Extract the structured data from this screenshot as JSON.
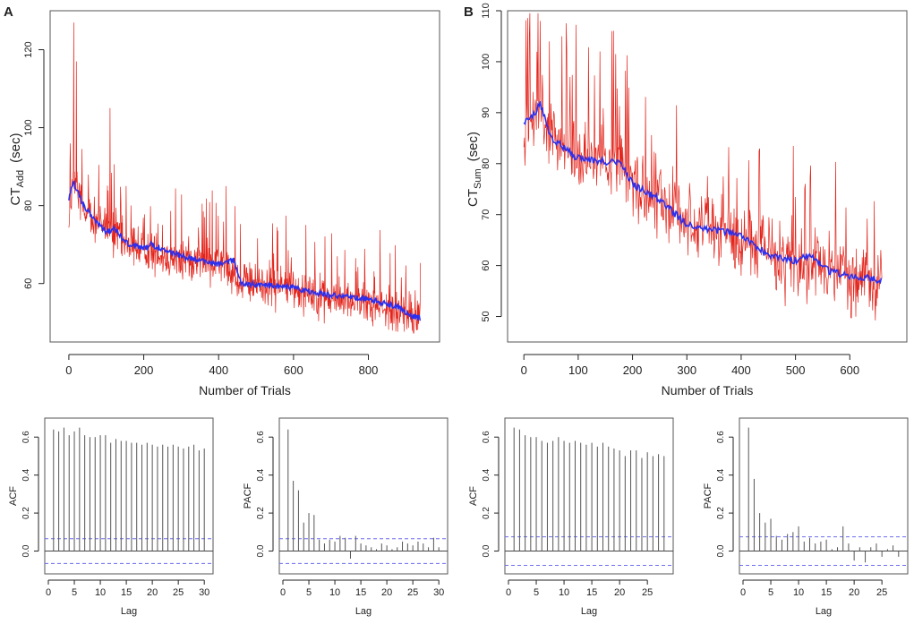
{
  "panels": {
    "a": "A",
    "b": "B"
  },
  "colors": {
    "raw": "#e3241b",
    "smooth": "#2a2ff0",
    "bar": "#555555",
    "ci": "#6f6ff0",
    "zero": "#444444",
    "frame": "#555555"
  },
  "chart_data": [
    {
      "id": "A-main",
      "type": "line",
      "xlabel": "Number of Trials",
      "ylabel": "CT",
      "ylabel_sub": "Add",
      "ylabel_unit": "(sec)",
      "xlim": [
        -50,
        990
      ],
      "ylim": [
        45,
        130
      ],
      "xticks": [
        0,
        200,
        400,
        600,
        800
      ],
      "yticks": [
        60,
        80,
        100,
        120
      ],
      "n": 940,
      "series": [
        {
          "name": "raw",
          "trend": [
            [
              0,
              76
            ],
            [
              10,
              86
            ],
            [
              50,
              78
            ],
            [
              100,
              74
            ],
            [
              150,
              70
            ],
            [
              200,
              69
            ],
            [
              300,
              66
            ],
            [
              420,
              65
            ],
            [
              460,
              60
            ],
            [
              600,
              59
            ],
            [
              700,
              56
            ],
            [
              800,
              55
            ],
            [
              900,
              52
            ],
            [
              940,
              51
            ]
          ],
          "noise": 6,
          "spikes": [
            [
              13,
              127
            ],
            [
              20,
              117
            ],
            [
              110,
              105
            ],
            [
              420,
              85
            ]
          ]
        },
        {
          "name": "smoothed",
          "values": [
            [
              0,
              82
            ],
            [
              12,
              86
            ],
            [
              40,
              80
            ],
            [
              100,
              73
            ],
            [
              120,
              74
            ],
            [
              160,
              70
            ],
            [
              200,
              69
            ],
            [
              220,
              70
            ],
            [
              300,
              67
            ],
            [
              400,
              65
            ],
            [
              440,
              66
            ],
            [
              460,
              60
            ],
            [
              600,
              59
            ],
            [
              640,
              58
            ],
            [
              700,
              57
            ],
            [
              800,
              56
            ],
            [
              880,
              54
            ],
            [
              910,
              52
            ],
            [
              940,
              51
            ]
          ]
        }
      ]
    },
    {
      "id": "B-main",
      "type": "line",
      "xlabel": "Number of Trials",
      "ylabel": "CT",
      "ylabel_sub": "Sum",
      "ylabel_unit": "(sec)",
      "xlim": [
        -30,
        705
      ],
      "ylim": [
        45,
        110
      ],
      "xticks": [
        0,
        100,
        200,
        300,
        400,
        500,
        600
      ],
      "yticks": [
        50,
        60,
        70,
        80,
        90,
        100,
        110
      ],
      "n": 660,
      "series": [
        {
          "name": "raw",
          "trend": [
            [
              0,
              85
            ],
            [
              30,
              90
            ],
            [
              60,
              84
            ],
            [
              100,
              81
            ],
            [
              180,
              80
            ],
            [
              200,
              76
            ],
            [
              300,
              69
            ],
            [
              400,
              65
            ],
            [
              500,
              61
            ],
            [
              600,
              58
            ],
            [
              660,
              57
            ]
          ],
          "noise": 8,
          "spikes": [
            [
              10,
              105
            ],
            [
              30,
              108
            ],
            [
              70,
              105
            ],
            [
              140,
              102
            ]
          ]
        },
        {
          "name": "smoothed",
          "values": [
            [
              0,
              88
            ],
            [
              15,
              89
            ],
            [
              30,
              92
            ],
            [
              50,
              85
            ],
            [
              100,
              81
            ],
            [
              180,
              80
            ],
            [
              200,
              76
            ],
            [
              250,
              73
            ],
            [
              300,
              68
            ],
            [
              400,
              66
            ],
            [
              450,
              62
            ],
            [
              500,
              61
            ],
            [
              530,
              62
            ],
            [
              560,
              59
            ],
            [
              600,
              58
            ],
            [
              660,
              57
            ]
          ]
        }
      ]
    },
    {
      "id": "A-acf",
      "type": "bar",
      "ylabel": "ACF",
      "xlabel": "Lag",
      "xlim": [
        0,
        31
      ],
      "ylim": [
        -0.12,
        0.7
      ],
      "xticks": [
        0,
        5,
        10,
        15,
        20,
        25,
        30
      ],
      "yticks": [
        0.0,
        0.2,
        0.4,
        0.6
      ],
      "ci": 0.065,
      "values": [
        0.64,
        0.63,
        0.65,
        0.61,
        0.63,
        0.65,
        0.61,
        0.6,
        0.6,
        0.61,
        0.61,
        0.57,
        0.59,
        0.58,
        0.58,
        0.57,
        0.57,
        0.56,
        0.57,
        0.56,
        0.55,
        0.56,
        0.55,
        0.56,
        0.55,
        0.54,
        0.55,
        0.56,
        0.53,
        0.54
      ]
    },
    {
      "id": "A-pacf",
      "type": "bar",
      "ylabel": "PACF",
      "xlabel": "Lag",
      "xlim": [
        0,
        31
      ],
      "ylim": [
        -0.12,
        0.7
      ],
      "xticks": [
        0,
        5,
        10,
        15,
        20,
        25,
        30
      ],
      "yticks": [
        0.0,
        0.2,
        0.4,
        0.6
      ],
      "ci": 0.065,
      "values": [
        0.64,
        0.37,
        0.32,
        0.15,
        0.2,
        0.19,
        0.06,
        0.04,
        0.06,
        0.05,
        0.08,
        0.07,
        -0.04,
        0.08,
        0.04,
        0.03,
        0.02,
        0.01,
        0.04,
        0.03,
        0.01,
        0.02,
        0.05,
        0.04,
        0.03,
        0.05,
        0.04,
        0.02,
        0.07,
        0.02
      ]
    },
    {
      "id": "B-acf",
      "type": "bar",
      "ylabel": "ACF",
      "xlabel": "Lag",
      "xlim": [
        0,
        29
      ],
      "ylim": [
        -0.12,
        0.7
      ],
      "xticks": [
        0,
        5,
        10,
        15,
        20,
        25
      ],
      "yticks": [
        0.0,
        0.2,
        0.4,
        0.6
      ],
      "ci": 0.075,
      "values": [
        0.65,
        0.64,
        0.61,
        0.6,
        0.6,
        0.58,
        0.57,
        0.58,
        0.6,
        0.58,
        0.57,
        0.58,
        0.57,
        0.56,
        0.57,
        0.55,
        0.57,
        0.55,
        0.54,
        0.53,
        0.5,
        0.53,
        0.53,
        0.49,
        0.52,
        0.5,
        0.51,
        0.5
      ]
    },
    {
      "id": "B-pacf",
      "type": "bar",
      "ylabel": "PACF",
      "xlabel": "Lag",
      "xlim": [
        0,
        29
      ],
      "ylim": [
        -0.12,
        0.7
      ],
      "xticks": [
        0,
        5,
        10,
        15,
        20,
        25
      ],
      "yticks": [
        0.0,
        0.2,
        0.4,
        0.6
      ],
      "ci": 0.075,
      "values": [
        0.65,
        0.38,
        0.2,
        0.15,
        0.17,
        0.08,
        0.06,
        0.09,
        0.1,
        0.13,
        0.05,
        0.07,
        0.04,
        0.05,
        0.06,
        0.01,
        0.02,
        0.13,
        0.04,
        -0.05,
        0.02,
        -0.06,
        0.02,
        0.04,
        -0.03,
        0.01,
        0.03,
        -0.03
      ]
    }
  ]
}
